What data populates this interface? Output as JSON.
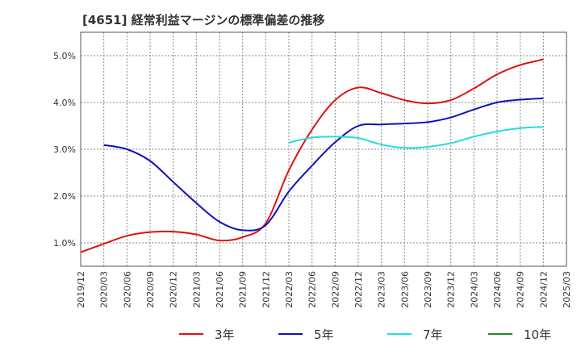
{
  "chart_data": {
    "type": "line",
    "title": "[4651]  経常利益マージンの標準偏差の推移",
    "xlabel": "",
    "ylabel": "",
    "ylim": [
      0.5,
      5.5
    ],
    "y_ticks": [
      "1.0%",
      "2.0%",
      "3.0%",
      "4.0%",
      "5.0%"
    ],
    "y_tick_values": [
      1.0,
      2.0,
      3.0,
      4.0,
      5.0
    ],
    "x_ticks": [
      "2019/12",
      "2020/03",
      "2020/06",
      "2020/09",
      "2020/12",
      "2021/03",
      "2021/06",
      "2021/09",
      "2021/12",
      "2022/03",
      "2022/06",
      "2022/09",
      "2022/12",
      "2023/03",
      "2023/06",
      "2023/09",
      "2023/12",
      "2024/03",
      "2024/06",
      "2024/09",
      "2024/12",
      "2025/03"
    ],
    "grid": true,
    "legend_position": "bottom",
    "series": [
      {
        "name": "3年",
        "color": "#dd1111",
        "x": [
          "2019/12",
          "2020/03",
          "2020/06",
          "2020/09",
          "2020/12",
          "2021/03",
          "2021/06",
          "2021/09",
          "2021/12",
          "2022/03",
          "2022/06",
          "2022/09",
          "2022/12",
          "2023/03",
          "2023/06",
          "2023/09",
          "2023/12",
          "2024/03",
          "2024/06",
          "2024/09",
          "2024/12"
        ],
        "values": [
          0.8,
          0.98,
          1.15,
          1.23,
          1.24,
          1.18,
          1.05,
          1.12,
          1.42,
          2.55,
          3.42,
          4.05,
          4.32,
          4.2,
          4.05,
          3.98,
          4.05,
          4.3,
          4.6,
          4.8,
          4.92
        ]
      },
      {
        "name": "5年",
        "color": "#1111bb",
        "x": [
          "2020/03",
          "2020/06",
          "2020/09",
          "2020/12",
          "2021/03",
          "2021/06",
          "2021/09",
          "2021/12",
          "2022/03",
          "2022/06",
          "2022/09",
          "2022/12",
          "2023/03",
          "2023/06",
          "2023/09",
          "2023/12",
          "2024/03",
          "2024/06",
          "2024/09",
          "2024/12"
        ],
        "values": [
          3.09,
          3.0,
          2.75,
          2.3,
          1.85,
          1.45,
          1.27,
          1.38,
          2.1,
          2.65,
          3.15,
          3.5,
          3.53,
          3.55,
          3.58,
          3.68,
          3.85,
          4.0,
          4.06,
          4.09
        ]
      },
      {
        "name": "7年",
        "color": "#22dddd",
        "x": [
          "2022/03",
          "2022/06",
          "2022/09",
          "2022/12",
          "2023/03",
          "2023/06",
          "2023/09",
          "2023/12",
          "2024/03",
          "2024/06",
          "2024/09",
          "2024/12"
        ],
        "values": [
          3.14,
          3.25,
          3.27,
          3.24,
          3.1,
          3.03,
          3.05,
          3.13,
          3.27,
          3.38,
          3.45,
          3.48
        ]
      },
      {
        "name": "10年",
        "color": "#228822",
        "x": [],
        "values": []
      }
    ]
  },
  "colors": {
    "axis": "#555555",
    "grid": "#888888",
    "text": "#333333"
  }
}
